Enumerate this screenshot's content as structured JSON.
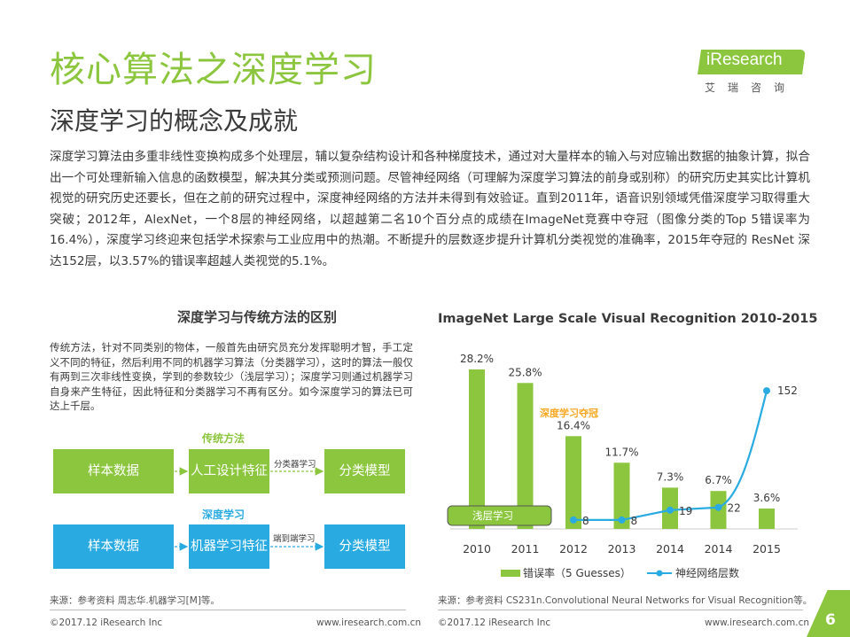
{
  "page": {
    "title": "核心算法之深度学习",
    "subtitle": "深度学习的概念及成就",
    "intro": "深度学习算法由多重非线性变换构成多个处理层，辅以复杂结构设计和各种梯度技术，通过对大量样本的输入与对应输出数据的抽象计算，拟合出一个可处理新输入信息的函数模型，解决其分类或预测问题。尽管神经网络（可理解为深度学习算法的前身或别称）的研究历史其实比计算机视觉的研究历史还要长，但在之前的研究过程中，深度神经网络的方法并未得到有效验证。直到2011年，语音识别领域凭借深度学习取得重大突破；2012年，AlexNet，一个8层的神经网络，以超越第二名10个百分点的成绩在ImageNet竞赛中夺冠（图像分类的Top 5错误率为16.4%），深度学习终迎来包括学术探索与工业应用中的热潮。不断提升的层数逐步提升计算机分类视觉的准确率，2015年夺冠的 ResNet 深达152层，以3.57%的错误率超越人类视觉的5.1%。",
    "page_number": "6"
  },
  "logo": {
    "text": "iResearch",
    "subtext": "艾瑞咨询"
  },
  "left_panel": {
    "title": "深度学习与传统方法的区别",
    "description": "传统方法，针对不同类别的物体，一般首先由研究员充分发挥聪明才智，手工定义不同的特征，然后利用不同的机器学习算法（分类器学习），这时的算法一般仅有两到三次非线性变换，学到的参数较少（浅层学习）；深度学习则通过机器学习自身来产生特征，因此特征和分类器学习不再有区分。如今深度学习的算法已可达上千层。",
    "traditional": {
      "label": "传统方法",
      "input": "样本数据",
      "middle": "人工设计特征",
      "output": "分类模型",
      "arrow_label": "分类器学习"
    },
    "deep": {
      "label": "深度学习",
      "input": "样本数据",
      "middle": "机器学习特征",
      "output": "分类模型",
      "arrow_label": "端到端学习"
    },
    "source": "来源：参考资料 周志华.机器学习[M]等。"
  },
  "colors": {
    "green": "#8cc63e",
    "blue": "#29abe2",
    "text": "#3a3a3a"
  },
  "chart_data": {
    "type": "bar",
    "title": "ImageNet Large Scale Visual Recognition 2010-2015",
    "categories": [
      "2010",
      "2011",
      "2012",
      "2013",
      "2014",
      "2014",
      "2015"
    ],
    "series": [
      {
        "name": "错误率（5 Guesses）",
        "type": "bar",
        "values": [
          28.2,
          25.8,
          16.4,
          11.7,
          7.3,
          6.7,
          3.6
        ],
        "labels": [
          "28.2%",
          "25.8%",
          "16.4%",
          "11.7%",
          "7.3%",
          "6.7%",
          "3.6%"
        ],
        "color": "#8cc63e"
      },
      {
        "name": "神经网络层数",
        "type": "line",
        "values": [
          null,
          null,
          8,
          8,
          19,
          22,
          152
        ],
        "labels": [
          "",
          "",
          "8",
          "8",
          "19",
          "22",
          "152"
        ],
        "color": "#29abe2"
      }
    ],
    "ylim_bar": [
      0,
      30
    ],
    "ylim_line": [
      0,
      160
    ],
    "annotations": {
      "shallow": "浅层学习",
      "deep_win": "深度学习夺冠"
    },
    "legend_position": "bottom",
    "source": "来源：参考资料 CS231n.Convolutional Neural Networks for Visual Recognition等。"
  },
  "footer": {
    "copyright": "©2017.12 iResearch Inc",
    "url": "www.iresearch.com.cn"
  }
}
